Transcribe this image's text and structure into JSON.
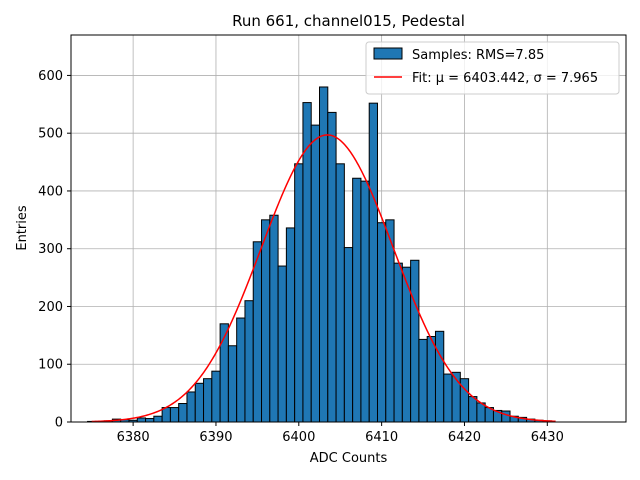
{
  "chart_data": {
    "type": "bar",
    "title": "Run 661, channel015, Pedestal",
    "xlabel": "ADC Counts",
    "ylabel": "Entries",
    "xlim": [
      6372.5,
      6439.5
    ],
    "ylim": [
      0,
      670
    ],
    "xticks": [
      6380,
      6390,
      6400,
      6410,
      6420,
      6430
    ],
    "yticks": [
      0,
      100,
      200,
      300,
      400,
      500,
      600
    ],
    "grid": true,
    "legend_position": "top-right",
    "histogram": {
      "name": "Samples: RMS=7.85",
      "color": "#1f77b4",
      "edge_color": "#000000",
      "bin_width": 1,
      "x": [
        6375,
        6376,
        6377,
        6378,
        6379,
        6380,
        6381,
        6382,
        6383,
        6384,
        6385,
        6386,
        6387,
        6388,
        6389,
        6390,
        6391,
        6392,
        6393,
        6394,
        6395,
        6396,
        6397,
        6398,
        6399,
        6400,
        6401,
        6402,
        6403,
        6404,
        6405,
        6406,
        6407,
        6408,
        6409,
        6410,
        6411,
        6412,
        6413,
        6414,
        6415,
        6416,
        6417,
        6418,
        6419,
        6420,
        6421,
        6422,
        6423,
        6424,
        6425,
        6426,
        6427,
        6428,
        6429,
        6430
      ],
      "values": [
        1,
        1,
        2,
        5,
        4,
        3,
        7,
        6,
        10,
        25,
        25,
        32,
        52,
        67,
        75,
        88,
        170,
        132,
        180,
        210,
        312,
        350,
        358,
        270,
        336,
        447,
        553,
        514,
        580,
        536,
        447,
        302,
        422,
        417,
        552,
        345,
        350,
        275,
        268,
        280,
        143,
        148,
        157,
        83,
        86,
        75,
        44,
        33,
        25,
        20,
        19,
        10,
        8,
        5,
        3,
        2
      ]
    },
    "fit": {
      "name": "Fit: μ = 6403.442, σ = 7.965",
      "color": "#ff0000",
      "mu": 6403.442,
      "sigma": 7.965,
      "amplitude": 497,
      "x_range": [
        6375,
        6431
      ]
    }
  }
}
